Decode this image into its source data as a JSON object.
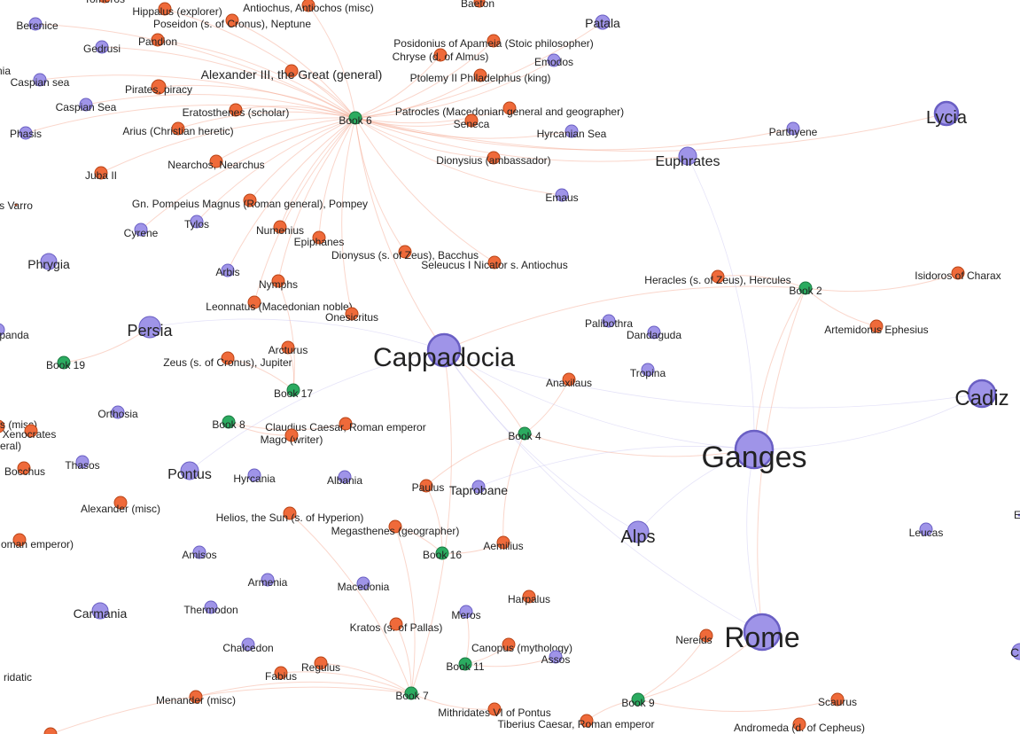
{
  "colors": {
    "place": "#9f94e8",
    "place_stroke": "#6a5fc4",
    "person": "#ef6a3a",
    "person_stroke": "#b94416",
    "book": "#2bab60",
    "book_stroke": "#1c7a42",
    "edge_person": "#f5a58c",
    "edge_place": "#c6c0ef",
    "background": "#ffffff"
  },
  "nodes": [
    {
      "id": "n1",
      "label": "Hippalus (explorer)",
      "type": "person"
    },
    {
      "id": "n2",
      "label": "Antiochus, Antiochos (misc)",
      "type": "person"
    },
    {
      "id": "n3",
      "label": "Baeton",
      "type": "person"
    },
    {
      "id": "n4",
      "label": "Berenice",
      "type": "place"
    },
    {
      "id": "n5",
      "label": "Poseidon (s. of Cronus), Neptune",
      "type": "person"
    },
    {
      "id": "n6",
      "label": "Patala",
      "type": "place"
    },
    {
      "id": "n7",
      "label": "Gedrusi",
      "type": "place"
    },
    {
      "id": "n8",
      "label": "Pandion",
      "type": "person"
    },
    {
      "id": "n9",
      "label": "Posidonius of Apameia (Stoic philosopher)",
      "type": "person"
    },
    {
      "id": "n10",
      "label": "Chryse (d. of Almus)",
      "type": "person"
    },
    {
      "id": "n11",
      "label": "Emodos",
      "type": "place"
    },
    {
      "id": "n12",
      "label": "Alexander III, the Great (general)",
      "type": "person"
    },
    {
      "id": "n13",
      "label": "Ptolemy II Philadelphus (king)",
      "type": "person"
    },
    {
      "id": "n14",
      "label": "Caspian sea",
      "type": "place"
    },
    {
      "id": "n15",
      "label": "Pirates, piracy",
      "type": "person"
    },
    {
      "id": "n16",
      "label": "Caspian Sea",
      "type": "place"
    },
    {
      "id": "n17",
      "label": "Eratosthenes (scholar)",
      "type": "person"
    },
    {
      "id": "n18",
      "label": "Book 6",
      "type": "book"
    },
    {
      "id": "n19",
      "label": "Patrocles (Macedonian general and geographer)",
      "type": "person"
    },
    {
      "id": "n20",
      "label": "Seneca",
      "type": "person"
    },
    {
      "id": "n21",
      "label": "Lycia",
      "type": "place"
    },
    {
      "id": "n22",
      "label": "Phasis",
      "type": "place"
    },
    {
      "id": "n23",
      "label": "Arius (Christian heretic)",
      "type": "person"
    },
    {
      "id": "n24",
      "label": "Hyrcanian Sea",
      "type": "place"
    },
    {
      "id": "n25",
      "label": "Parthyene",
      "type": "place"
    },
    {
      "id": "n26",
      "label": "Nearchos, Nearchus",
      "type": "person"
    },
    {
      "id": "n27",
      "label": "Dionysius (ambassador)",
      "type": "person"
    },
    {
      "id": "n28",
      "label": "Euphrates",
      "type": "place"
    },
    {
      "id": "n29",
      "label": "Juba II",
      "type": "person"
    },
    {
      "id": "n30",
      "label": "Emaus",
      "type": "place"
    },
    {
      "id": "n31",
      "label": "s Varro",
      "type": "person"
    },
    {
      "id": "n32",
      "label": "Gn. Pompeius Magnus (Roman general), Pompey",
      "type": "person"
    },
    {
      "id": "n33",
      "label": "Tylos",
      "type": "place"
    },
    {
      "id": "n34",
      "label": "Cyrene",
      "type": "place"
    },
    {
      "id": "n35",
      "label": "Numenius",
      "type": "person"
    },
    {
      "id": "n36",
      "label": "Epiphanes",
      "type": "person"
    },
    {
      "id": "n37",
      "label": "Dionysus (s. of Zeus), Bacchus",
      "type": "person"
    },
    {
      "id": "n38",
      "label": "Phrygia",
      "type": "place"
    },
    {
      "id": "n39",
      "label": "Seleucus I Nicator s. Antiochus",
      "type": "person"
    },
    {
      "id": "n40",
      "label": "Arbis",
      "type": "place"
    },
    {
      "id": "n41",
      "label": "Isidoros of Charax",
      "type": "person"
    },
    {
      "id": "n42",
      "label": "Heracles (s. of Zeus), Hercules",
      "type": "person"
    },
    {
      "id": "n43",
      "label": "Book 2",
      "type": "book"
    },
    {
      "id": "n44",
      "label": "Nymphs",
      "type": "person"
    },
    {
      "id": "n45",
      "label": "Leonnatus (Macedonian noble)",
      "type": "person"
    },
    {
      "id": "n46",
      "label": "Onesicritus",
      "type": "person"
    },
    {
      "id": "n47",
      "label": "Palibothra",
      "type": "place"
    },
    {
      "id": "n48",
      "label": "Persia",
      "type": "place"
    },
    {
      "id": "n49",
      "label": "Dandaguda",
      "type": "place"
    },
    {
      "id": "n50",
      "label": "Artemidorus Ephesius",
      "type": "person"
    },
    {
      "id": "n51",
      "label": "panda",
      "type": "place"
    },
    {
      "id": "n52",
      "label": "Cappadocia",
      "type": "place"
    },
    {
      "id": "n53",
      "label": "Arcturus",
      "type": "person"
    },
    {
      "id": "n54",
      "label": "Book 19",
      "type": "book"
    },
    {
      "id": "n55",
      "label": "Zeus (s. of Cronus), Jupiter",
      "type": "person"
    },
    {
      "id": "n56",
      "label": "Tropina",
      "type": "place"
    },
    {
      "id": "n57",
      "label": "Anaxilaus",
      "type": "person"
    },
    {
      "id": "n58",
      "label": "Cadiz",
      "type": "place"
    },
    {
      "id": "n59",
      "label": "Book 17",
      "type": "book"
    },
    {
      "id": "n60",
      "label": "Orthosia",
      "type": "place"
    },
    {
      "id": "n61",
      "label": "Book 8",
      "type": "book"
    },
    {
      "id": "n62",
      "label": "Claudius Caesar, Roman emperor",
      "type": "person"
    },
    {
      "id": "n63",
      "label": "s (misc)",
      "type": "person"
    },
    {
      "id": "n64",
      "label": "Xenocrates",
      "type": "person"
    },
    {
      "id": "n65",
      "label": "Mago (writer)",
      "type": "person"
    },
    {
      "id": "n66",
      "label": "Book 4",
      "type": "book"
    },
    {
      "id": "n67",
      "label": "Ganges",
      "type": "place"
    },
    {
      "id": "n68",
      "label": "eral)",
      "type": "person"
    },
    {
      "id": "n69",
      "label": "Bocchus",
      "type": "person"
    },
    {
      "id": "n70",
      "label": "Thasos",
      "type": "place"
    },
    {
      "id": "n71",
      "label": "Pontus",
      "type": "place"
    },
    {
      "id": "n72",
      "label": "Hyrcania",
      "type": "place"
    },
    {
      "id": "n73",
      "label": "Albania",
      "type": "place"
    },
    {
      "id": "n74",
      "label": "Paulus",
      "type": "person"
    },
    {
      "id": "n75",
      "label": "Taprobane",
      "type": "place"
    },
    {
      "id": "n76",
      "label": "Alexander (misc)",
      "type": "person"
    },
    {
      "id": "n77",
      "label": "Helios, the Sun (s. of Hyperion)",
      "type": "person"
    },
    {
      "id": "n78",
      "label": "Megasthenes (geographer)",
      "type": "person"
    },
    {
      "id": "n79",
      "label": "Alps",
      "type": "place"
    },
    {
      "id": "n80",
      "label": "Leucas",
      "type": "place"
    },
    {
      "id": "n81",
      "label": "oman emperor)",
      "type": "person"
    },
    {
      "id": "n82",
      "label": "Aemilius",
      "type": "person"
    },
    {
      "id": "n83",
      "label": "Amisos",
      "type": "place"
    },
    {
      "id": "n84",
      "label": "Book 16",
      "type": "book"
    },
    {
      "id": "n85",
      "label": "Armenia",
      "type": "place"
    },
    {
      "id": "n86",
      "label": "Macedonia",
      "type": "place"
    },
    {
      "id": "n87",
      "label": "Harpalus",
      "type": "person"
    },
    {
      "id": "n88",
      "label": "Carmania",
      "type": "place"
    },
    {
      "id": "n89",
      "label": "Thermodon",
      "type": "place"
    },
    {
      "id": "n90",
      "label": "Meros",
      "type": "place"
    },
    {
      "id": "n91",
      "label": "Kratos (s. of Pallas)",
      "type": "person"
    },
    {
      "id": "n92",
      "label": "Nereids",
      "type": "person"
    },
    {
      "id": "n93",
      "label": "Rome",
      "type": "place"
    },
    {
      "id": "n94",
      "label": "Chalcedon",
      "type": "place"
    },
    {
      "id": "n95",
      "label": "Canopus (mythology)",
      "type": "person"
    },
    {
      "id": "n96",
      "label": "Assos",
      "type": "place"
    },
    {
      "id": "n97",
      "label": "Regulus",
      "type": "person"
    },
    {
      "id": "n98",
      "label": "Book 11",
      "type": "book"
    },
    {
      "id": "n99",
      "label": "ridatic",
      "type": "person"
    },
    {
      "id": "n100",
      "label": "Fabius",
      "type": "person"
    },
    {
      "id": "n101",
      "label": "Menander (misc)",
      "type": "person"
    },
    {
      "id": "n102",
      "label": "Book 7",
      "type": "book"
    },
    {
      "id": "n103",
      "label": "Book 9",
      "type": "book"
    },
    {
      "id": "n104",
      "label": "Scaurus",
      "type": "person"
    },
    {
      "id": "n105",
      "label": "Mithridates VI of Pontus",
      "type": "person"
    },
    {
      "id": "n106",
      "label": "Tiberius Caesar, Roman emperor",
      "type": "person"
    },
    {
      "id": "n107",
      "label": "Andromeda (d. of Cepheus)",
      "type": "person"
    },
    {
      "id": "n108",
      "label": "nia",
      "type": "place"
    },
    {
      "id": "n109",
      "label": "Tomeros",
      "type": "person"
    },
    {
      "id": "n110",
      "label": "E",
      "type": "place"
    },
    {
      "id": "n111",
      "label": "C",
      "type": "place"
    },
    {
      "id": "n112",
      "label": "",
      "type": "person"
    }
  ],
  "edges": [
    [
      "n18",
      "n12"
    ],
    [
      "n18",
      "n15"
    ],
    [
      "n18",
      "n17"
    ],
    [
      "n18",
      "n19"
    ],
    [
      "n18",
      "n20"
    ],
    [
      "n18",
      "n10"
    ],
    [
      "n18",
      "n9"
    ],
    [
      "n18",
      "n13"
    ],
    [
      "n18",
      "n23"
    ],
    [
      "n18",
      "n26"
    ],
    [
      "n18",
      "n27"
    ],
    [
      "n18",
      "n32"
    ],
    [
      "n18",
      "n36"
    ],
    [
      "n18",
      "n35"
    ],
    [
      "n18",
      "n37"
    ],
    [
      "n18",
      "n39"
    ],
    [
      "n18",
      "n2"
    ],
    [
      "n18",
      "n1"
    ],
    [
      "n18",
      "n5"
    ],
    [
      "n18",
      "n8"
    ],
    [
      "n18",
      "n29"
    ],
    [
      "n18",
      "n44"
    ],
    [
      "n18",
      "n46"
    ],
    [
      "n18",
      "n45"
    ],
    [
      "n18",
      "n4"
    ],
    [
      "n18",
      "n7"
    ],
    [
      "n18",
      "n6"
    ],
    [
      "n18",
      "n14"
    ],
    [
      "n18",
      "n16"
    ],
    [
      "n18",
      "n22"
    ],
    [
      "n18",
      "n24"
    ],
    [
      "n18",
      "n28"
    ],
    [
      "n18",
      "n30"
    ],
    [
      "n18",
      "n11"
    ],
    [
      "n18",
      "n33"
    ],
    [
      "n18",
      "n34"
    ],
    [
      "n18",
      "n40"
    ],
    [
      "n18",
      "n52"
    ],
    [
      "n18",
      "n21"
    ],
    [
      "n18",
      "n25"
    ],
    [
      "n43",
      "n42"
    ],
    [
      "n43",
      "n50"
    ],
    [
      "n43",
      "n41"
    ],
    [
      "n43",
      "n93"
    ],
    [
      "n43",
      "n52"
    ],
    [
      "n43",
      "n67"
    ],
    [
      "n66",
      "n57"
    ],
    [
      "n66",
      "n74"
    ],
    [
      "n66",
      "n82"
    ],
    [
      "n66",
      "n67"
    ],
    [
      "n66",
      "n52"
    ],
    [
      "n102",
      "n97"
    ],
    [
      "n102",
      "n100"
    ],
    [
      "n102",
      "n101"
    ],
    [
      "n102",
      "n91"
    ],
    [
      "n102",
      "n105"
    ],
    [
      "n102",
      "n78"
    ],
    [
      "n102",
      "n77"
    ],
    [
      "n102",
      "n112"
    ],
    [
      "n102",
      "n52"
    ],
    [
      "n103",
      "n92"
    ],
    [
      "n103",
      "n106"
    ],
    [
      "n103",
      "n104"
    ],
    [
      "n103",
      "n93"
    ],
    [
      "n84",
      "n78"
    ],
    [
      "n84",
      "n82"
    ],
    [
      "n84",
      "n74"
    ],
    [
      "n98",
      "n95"
    ],
    [
      "n98",
      "n96"
    ],
    [
      "n98",
      "n90"
    ],
    [
      "n59",
      "n53"
    ],
    [
      "n59",
      "n55"
    ],
    [
      "n59",
      "n44"
    ],
    [
      "n61",
      "n62"
    ],
    [
      "n61",
      "n65"
    ],
    [
      "n54",
      "n48"
    ],
    [
      "n52",
      "n67"
    ],
    [
      "n52",
      "n93"
    ],
    [
      "n52",
      "n58"
    ],
    [
      "n52",
      "n79"
    ],
    [
      "n52",
      "n48"
    ],
    [
      "n52",
      "n71"
    ],
    [
      "n67",
      "n93"
    ],
    [
      "n67",
      "n58"
    ],
    [
      "n67",
      "n79"
    ],
    [
      "n67",
      "n75"
    ],
    [
      "n67",
      "n28"
    ]
  ]
}
